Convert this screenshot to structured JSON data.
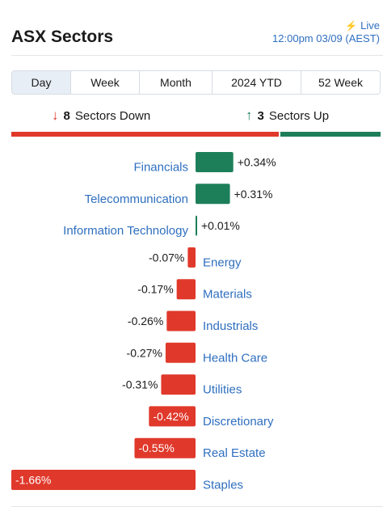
{
  "header": {
    "title": "ASX Sectors",
    "live_label": "Live",
    "timestamp": "12:00pm 03/09 (AEST)"
  },
  "tabs": [
    {
      "label": "Day",
      "active": true
    },
    {
      "label": "Week",
      "active": false
    },
    {
      "label": "Month",
      "active": false
    },
    {
      "label": "2024 YTD",
      "active": false
    },
    {
      "label": "52 Week",
      "active": false
    }
  ],
  "summary": {
    "down_count": "8",
    "down_label": "Sectors Down",
    "up_count": "3",
    "up_label": "Sectors Up"
  },
  "colors": {
    "positive": "#1d7f5a",
    "negative": "#e0392b",
    "link": "#2f6fbf"
  },
  "chart_data": {
    "type": "bar",
    "orientation": "horizontal",
    "unit": "%",
    "categories": [
      "Financials",
      "Telecommunication",
      "Information Technology",
      "Energy",
      "Materials",
      "Industrials",
      "Health Care",
      "Utilities",
      "Discretionary",
      "Real Estate",
      "Staples"
    ],
    "values": [
      0.34,
      0.31,
      0.01,
      -0.07,
      -0.17,
      -0.26,
      -0.27,
      -0.31,
      -0.42,
      -0.55,
      -1.66
    ],
    "labels": [
      "+0.34%",
      "+0.31%",
      "+0.01%",
      "-0.07%",
      "-0.17%",
      "-0.26%",
      "-0.27%",
      "-0.31%",
      "-0.42%",
      "-0.55%",
      "-1.66%"
    ],
    "xlim": [
      -1.66,
      0.34
    ]
  }
}
